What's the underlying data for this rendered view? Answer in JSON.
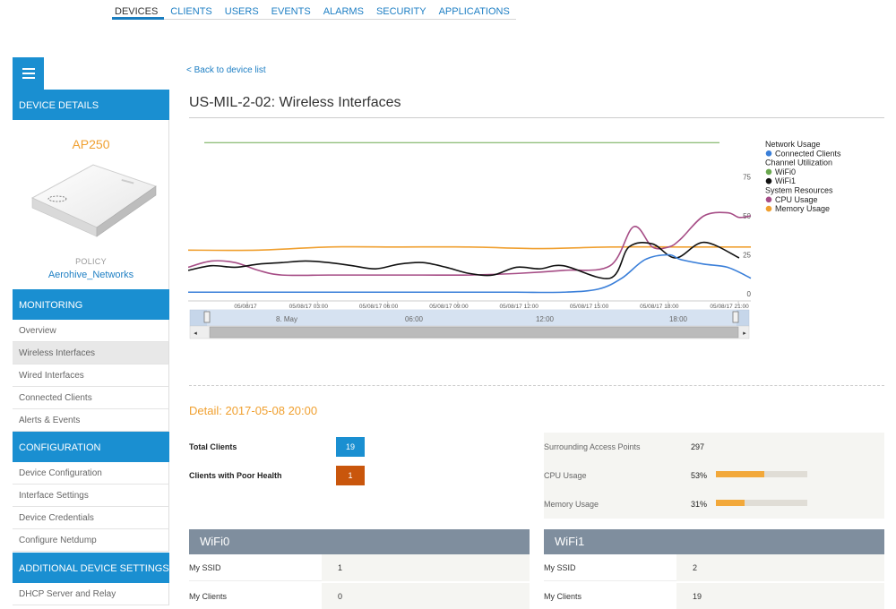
{
  "nav": {
    "tabs": [
      "DEVICES",
      "CLIENTS",
      "USERS",
      "EVENTS",
      "ALARMS",
      "SECURITY",
      "APPLICATIONS"
    ],
    "active": "DEVICES"
  },
  "sidebar": {
    "device_details_label": "DEVICE DETAILS",
    "device": {
      "model": "AP250",
      "policy_label": "POLICY",
      "policy_value": "Aerohive_Networks"
    },
    "monitoring_label": "MONITORING",
    "monitoring_items": [
      "Overview",
      "Wireless Interfaces",
      "Wired Interfaces",
      "Connected Clients",
      "Alerts & Events"
    ],
    "configuration_label": "CONFIGURATION",
    "configuration_items": [
      "Device Configuration",
      "Interface Settings",
      "Device Credentials",
      "Configure Netdump"
    ],
    "additional_label": "ADDITIONAL DEVICE SETTINGS",
    "additional_items": [
      "DHCP Server and Relay"
    ],
    "selected_item": "Wireless Interfaces"
  },
  "main": {
    "back_link": "< Back to device list",
    "title": "US-MIL-2-02: Wireless Interfaces"
  },
  "chart_data": {
    "type": "line",
    "x_ticks": [
      "05/08/17",
      "05/08/17 03:00",
      "05/08/17 06:00",
      "05/08/17 09:00",
      "05/08/17 12:00",
      "05/08/17 15:00",
      "05/08/17 18:00",
      "05/08/17 21:00"
    ],
    "y_ticks": [
      "0",
      "25",
      "50",
      "75"
    ],
    "ylim": [
      0,
      100
    ],
    "legend": [
      {
        "group": "Network Usage",
        "items": [
          {
            "name": "Connected Clients",
            "color": "#3a7fd9"
          }
        ]
      },
      {
        "group": "Channel Utilization",
        "items": [
          {
            "name": "WiFi0",
            "color": "#6aa84f"
          },
          {
            "name": "WiFi1",
            "color": "#111111"
          }
        ]
      },
      {
        "group": "System Resources",
        "items": [
          {
            "name": "CPU Usage",
            "color": "#a64d86"
          },
          {
            "name": "Memory Usage",
            "color": "#f0a030"
          }
        ]
      }
    ],
    "navigator_labels": [
      "8. May",
      "06:00",
      "12:00",
      "18:00"
    ],
    "series": [
      {
        "name": "WiFi0",
        "color": "#6aa84f",
        "x": [
          0,
          24
        ],
        "y": [
          97,
          97
        ]
      },
      {
        "name": "Memory Usage",
        "color": "#f0a030",
        "x": [
          0,
          3,
          6,
          9,
          12,
          15,
          18,
          21,
          24
        ],
        "y": [
          28,
          28,
          30,
          30,
          30,
          29,
          30,
          30,
          30
        ]
      },
      {
        "name": "CPU Usage",
        "color": "#a64d86",
        "x": [
          0,
          1,
          2,
          3,
          4,
          6,
          8,
          10,
          12,
          14,
          16,
          18,
          19,
          19.8,
          20.5,
          21,
          22,
          23,
          23.5,
          24
        ],
        "y": [
          17,
          21,
          20,
          15,
          12,
          12,
          12,
          12,
          12,
          13,
          15,
          18,
          43,
          30,
          30,
          35,
          50,
          52,
          49,
          50
        ]
      },
      {
        "name": "WiFi1",
        "color": "#111111",
        "x": [
          0,
          1,
          2,
          3,
          4,
          5,
          6,
          7,
          8,
          9,
          10,
          11,
          12,
          13,
          14,
          15,
          16,
          18,
          18.8,
          19.8,
          20.8,
          22,
          23.5
        ],
        "y": [
          15,
          18,
          17,
          19,
          20,
          21,
          20,
          18,
          16,
          19,
          20,
          17,
          13,
          12,
          17,
          16,
          18,
          10,
          30,
          32,
          23,
          33,
          23
        ]
      },
      {
        "name": "Connected Clients",
        "color": "#3a7fd9",
        "x": [
          0,
          2,
          4,
          6,
          8,
          10,
          12,
          14,
          16,
          17.5,
          18.5,
          19.5,
          20.5,
          21,
          22,
          23,
          24
        ],
        "y": [
          1,
          1,
          1,
          1,
          1,
          1,
          1,
          1,
          1,
          3,
          10,
          22,
          25,
          22,
          19,
          17,
          10
        ]
      }
    ]
  },
  "detail": {
    "title": "Detail: 2017-05-08 20:00",
    "total_clients_label": "Total Clients",
    "total_clients_value": "19",
    "poor_health_label": "Clients with Poor Health",
    "poor_health_value": "1",
    "surrounding_ap_label": "Surrounding Access Points",
    "surrounding_ap_value": "297",
    "cpu_label": "CPU Usage",
    "cpu_value": "53%",
    "cpu_fraction": 0.53,
    "memory_label": "Memory Usage",
    "memory_value": "31%",
    "memory_fraction": 0.31,
    "colors": {
      "total_clients": "#1a8fd1",
      "poor_health": "#c9560c",
      "bar_fill": "#f2a83a"
    }
  },
  "wifi0": {
    "title": "WiFi0",
    "rows": [
      {
        "label": "My SSID",
        "value": "1"
      },
      {
        "label": "My Clients",
        "value": "0"
      }
    ]
  },
  "wifi1": {
    "title": "WiFi1",
    "rows": [
      {
        "label": "My SSID",
        "value": "2"
      },
      {
        "label": "My Clients",
        "value": "19"
      }
    ]
  }
}
